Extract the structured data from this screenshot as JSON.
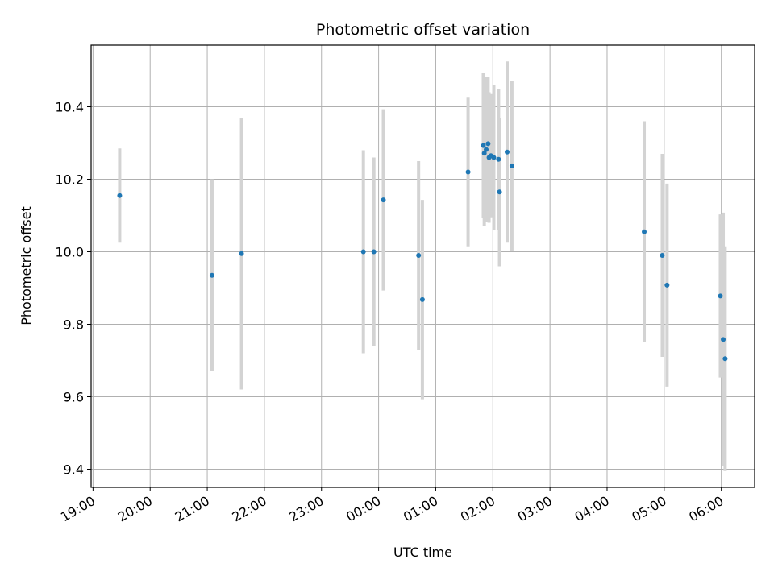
{
  "chart_data": {
    "type": "scatter",
    "title": "Photometric offset variation",
    "xlabel": "UTC time",
    "ylabel": "Photometric offset",
    "x_ticks": [
      "19:00",
      "20:00",
      "21:00",
      "22:00",
      "23:00",
      "00:00",
      "01:00",
      "02:00",
      "03:00",
      "04:00",
      "05:00",
      "06:00"
    ],
    "y_ticks": [
      "9.4",
      "9.6",
      "9.8",
      "10.0",
      "10.2",
      "10.4"
    ],
    "xlim": [
      "18:58",
      "06:35"
    ],
    "ylim": [
      9.35,
      10.57
    ],
    "grid": true,
    "colors": {
      "point": "#1f77b4",
      "errorbar": "#d3d3d3",
      "grid": "#b0b0b0"
    },
    "points": [
      {
        "x": "19:28",
        "y": 10.155,
        "err": 0.13
      },
      {
        "x": "21:05",
        "y": 9.935,
        "err": 0.265
      },
      {
        "x": "21:36",
        "y": 9.995,
        "err": 0.375
      },
      {
        "x": "23:44",
        "y": 10.0,
        "err": 0.28
      },
      {
        "x": "23:55",
        "y": 10.0,
        "err": 0.26
      },
      {
        "x": "00:05",
        "y": 10.143,
        "err": 0.25
      },
      {
        "x": "00:42",
        "y": 9.99,
        "err": 0.26
      },
      {
        "x": "00:46",
        "y": 9.868,
        "err": 0.275
      },
      {
        "x": "01:34",
        "y": 10.22,
        "err": 0.205
      },
      {
        "x": "01:50",
        "y": 10.293,
        "err": 0.2
      },
      {
        "x": "01:51",
        "y": 10.272,
        "err": 0.2
      },
      {
        "x": "01:53",
        "y": 10.282,
        "err": 0.2
      },
      {
        "x": "01:55",
        "y": 10.298,
        "err": 0.185
      },
      {
        "x": "01:56",
        "y": 10.26,
        "err": 0.18
      },
      {
        "x": "01:58",
        "y": 10.265,
        "err": 0.17
      },
      {
        "x": "02:01",
        "y": 10.26,
        "err": 0.2
      },
      {
        "x": "02:06",
        "y": 10.255,
        "err": 0.195
      },
      {
        "x": "02:07",
        "y": 10.165,
        "err": 0.205
      },
      {
        "x": "02:15",
        "y": 10.275,
        "err": 0.25
      },
      {
        "x": "02:20",
        "y": 10.237,
        "err": 0.235
      },
      {
        "x": "04:39",
        "y": 10.055,
        "err": 0.305
      },
      {
        "x": "04:58",
        "y": 9.99,
        "err": 0.28
      },
      {
        "x": "05:03",
        "y": 9.908,
        "err": 0.28
      },
      {
        "x": "05:59",
        "y": 9.878,
        "err": 0.225
      },
      {
        "x": "06:02",
        "y": 9.758,
        "err": 0.35
      },
      {
        "x": "06:04",
        "y": 9.705,
        "err": 0.31
      }
    ]
  }
}
